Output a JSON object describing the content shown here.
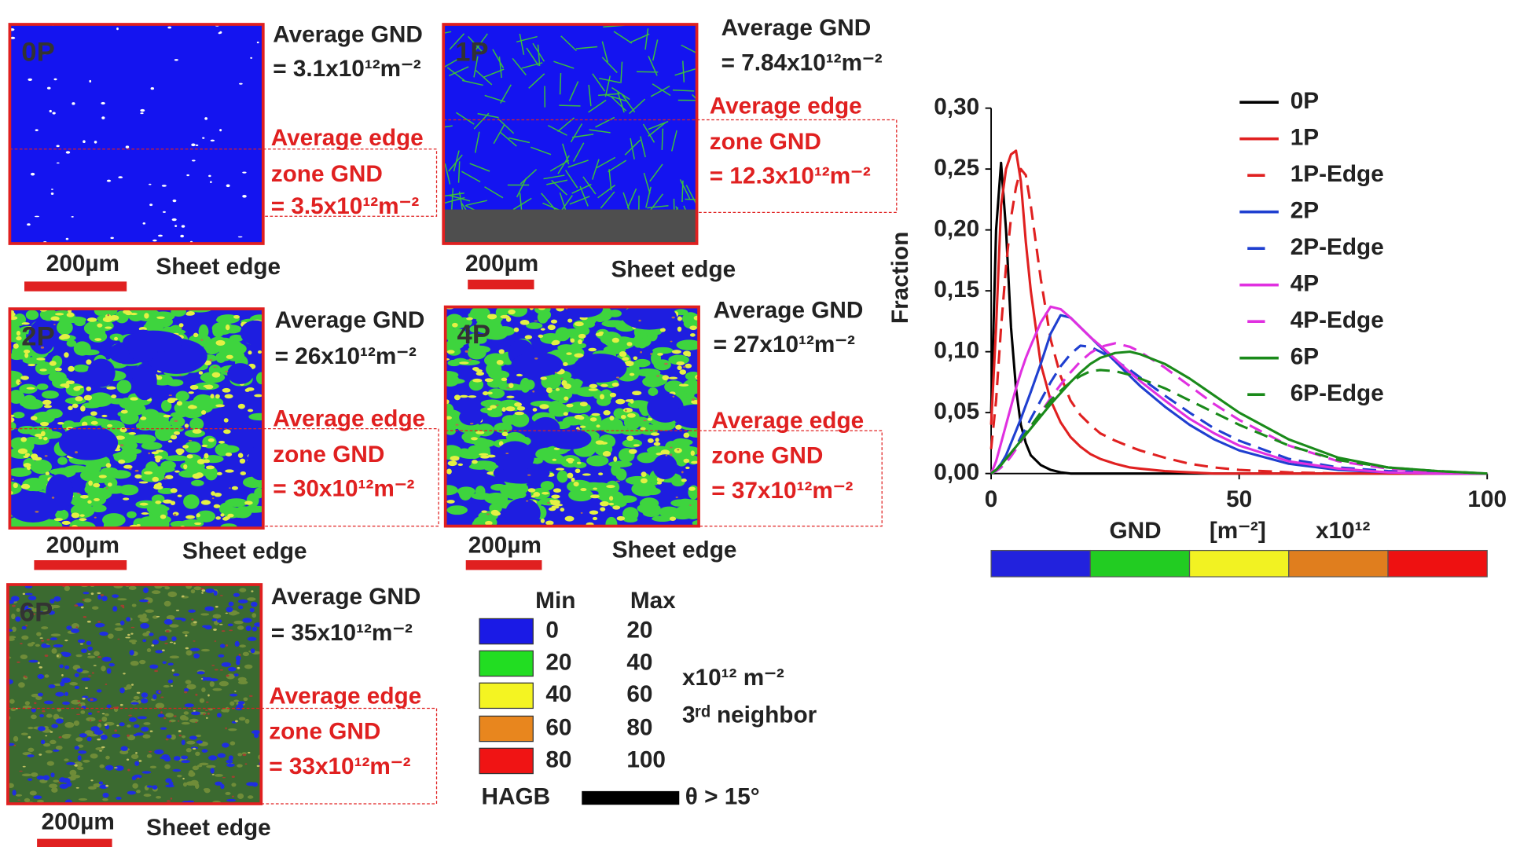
{
  "panels": [
    {
      "label": "0P",
      "avg_title": "Average GND",
      "avg_value": "= 3.1x10¹²m⁻²",
      "edge_lines": [
        "Average edge",
        "zone GND",
        "= 3.5x10¹²m⁻²"
      ],
      "scale": "200µm",
      "edge": "Sheet edge"
    },
    {
      "label": "1P",
      "avg_title": "Average GND",
      "avg_value": "= 7.84x10¹²m⁻²",
      "edge_lines": [
        "Average edge",
        "zone GND",
        "= 12.3x10¹²m⁻²"
      ],
      "scale": "200µm",
      "edge": "Sheet edge"
    },
    {
      "label": "2P",
      "avg_title": "Average GND",
      "avg_value": "= 26x10¹²m⁻²",
      "edge_lines": [
        "Average edge",
        "zone GND",
        "= 30x10¹²m⁻²"
      ],
      "scale": "200µm",
      "edge": "Sheet edge"
    },
    {
      "label": "4P",
      "avg_title": "Average GND",
      "avg_value": "= 27x10¹²m⁻²",
      "edge_lines": [
        "Average edge",
        "zone GND",
        "= 37x10¹²m⁻²"
      ],
      "scale": "200µm",
      "edge": "Sheet edge"
    },
    {
      "label": "6P",
      "avg_title": "Average GND",
      "avg_value": "= 35x10¹²m⁻²",
      "edge_lines": [
        "Average edge",
        "zone GND",
        "= 33x10¹²m⁻²"
      ],
      "scale": "200µm",
      "edge": "Sheet edge"
    }
  ],
  "key": {
    "min_header": "Min",
    "max_header": "Max",
    "rows": [
      {
        "color": "#1a1ae6",
        "min": 0,
        "max": 20
      },
      {
        "color": "#22dd22",
        "min": 20,
        "max": 40
      },
      {
        "color": "#f4f422",
        "min": 40,
        "max": 60
      },
      {
        "color": "#e8861e",
        "min": 60,
        "max": 80
      },
      {
        "color": "#f01414",
        "min": 80,
        "max": 100
      }
    ],
    "unit": "x10¹² m⁻²",
    "neighbor": "3ʳᵈ neighbor",
    "hagb": "HAGB",
    "hagb_rule": "θ > 15°"
  },
  "chart_data": {
    "type": "line",
    "ylabel": "Fraction",
    "xlabel_parts": [
      "GND",
      "[m⁻²]",
      "x10¹²"
    ],
    "x": [
      0,
      1,
      2,
      3,
      4,
      5,
      6,
      7,
      8,
      10,
      12,
      14,
      16,
      18,
      20,
      22,
      25,
      28,
      30,
      35,
      40,
      45,
      50,
      60,
      70,
      80,
      90,
      100
    ],
    "xlim": [
      0,
      100
    ],
    "xticks": [
      0,
      50,
      100
    ],
    "ylim": [
      0,
      0.3
    ],
    "yticks": [
      {
        "value": 0,
        "label": "0,00"
      },
      {
        "value": 0.05,
        "label": "0,05"
      },
      {
        "value": 0.1,
        "label": "0,10"
      },
      {
        "value": 0.15,
        "label": "0,15"
      },
      {
        "value": 0.2,
        "label": "0,20"
      },
      {
        "value": 0.25,
        "label": "0,25"
      },
      {
        "value": 0.3,
        "label": "0,30"
      }
    ],
    "colorbar": [
      "#2222dd",
      "#22cc22",
      "#f2f222",
      "#e07e1e",
      "#ee1111"
    ],
    "series": [
      {
        "name": "0P",
        "color": "#000000",
        "dashed": false,
        "values": [
          0.05,
          0.2,
          0.255,
          0.2,
          0.12,
          0.07,
          0.04,
          0.025,
          0.015,
          0.007,
          0.003,
          0.001,
          0,
          0,
          0,
          0,
          0,
          0,
          0,
          0,
          0,
          0,
          0,
          0,
          0,
          0,
          0,
          0
        ]
      },
      {
        "name": "1P",
        "color": "#e02020",
        "dashed": false,
        "values": [
          0.04,
          0.12,
          0.22,
          0.25,
          0.262,
          0.265,
          0.24,
          0.19,
          0.15,
          0.09,
          0.06,
          0.042,
          0.03,
          0.022,
          0.016,
          0.012,
          0.008,
          0.005,
          0.004,
          0.002,
          0.001,
          0,
          0,
          0,
          0,
          0,
          0,
          0
        ]
      },
      {
        "name": "1P-Edge",
        "color": "#e02020",
        "dashed": true,
        "values": [
          0.02,
          0.06,
          0.12,
          0.17,
          0.21,
          0.235,
          0.25,
          0.245,
          0.22,
          0.16,
          0.11,
          0.08,
          0.06,
          0.048,
          0.04,
          0.033,
          0.027,
          0.022,
          0.019,
          0.013,
          0.008,
          0.005,
          0.003,
          0.001,
          0,
          0,
          0,
          0
        ]
      },
      {
        "name": "2P",
        "color": "#1f3fd0",
        "dashed": false,
        "values": [
          0,
          0.003,
          0.008,
          0.015,
          0.025,
          0.035,
          0.045,
          0.056,
          0.067,
          0.09,
          0.115,
          0.13,
          0.128,
          0.12,
          0.112,
          0.104,
          0.092,
          0.08,
          0.072,
          0.055,
          0.04,
          0.028,
          0.019,
          0.008,
          0.003,
          0.001,
          0,
          0
        ]
      },
      {
        "name": "2P-Edge",
        "color": "#1f3fd0",
        "dashed": true,
        "values": [
          0,
          0.002,
          0.005,
          0.01,
          0.016,
          0.022,
          0.03,
          0.037,
          0.045,
          0.06,
          0.075,
          0.088,
          0.098,
          0.105,
          0.104,
          0.1,
          0.093,
          0.085,
          0.079,
          0.064,
          0.05,
          0.037,
          0.027,
          0.012,
          0.005,
          0.002,
          0.001,
          0
        ]
      },
      {
        "name": "4P",
        "color": "#e030e0",
        "dashed": false,
        "values": [
          0,
          0.01,
          0.025,
          0.04,
          0.055,
          0.07,
          0.083,
          0.095,
          0.105,
          0.124,
          0.137,
          0.135,
          0.128,
          0.12,
          0.112,
          0.105,
          0.094,
          0.083,
          0.076,
          0.06,
          0.045,
          0.033,
          0.023,
          0.01,
          0.004,
          0.001,
          0,
          0
        ]
      },
      {
        "name": "4P-Edge",
        "color": "#e030e0",
        "dashed": true,
        "values": [
          0,
          0.002,
          0.005,
          0.009,
          0.014,
          0.02,
          0.026,
          0.032,
          0.038,
          0.05,
          0.062,
          0.073,
          0.083,
          0.092,
          0.099,
          0.104,
          0.107,
          0.104,
          0.1,
          0.087,
          0.072,
          0.057,
          0.044,
          0.023,
          0.01,
          0.004,
          0.001,
          0
        ]
      },
      {
        "name": "6P",
        "color": "#1a8a1a",
        "dashed": false,
        "values": [
          0,
          0.003,
          0.007,
          0.012,
          0.017,
          0.022,
          0.027,
          0.032,
          0.037,
          0.047,
          0.057,
          0.066,
          0.075,
          0.083,
          0.09,
          0.095,
          0.099,
          0.1,
          0.098,
          0.09,
          0.078,
          0.064,
          0.05,
          0.028,
          0.013,
          0.005,
          0.002,
          0
        ]
      },
      {
        "name": "6P-Edge",
        "color": "#1a8a1a",
        "dashed": true,
        "values": [
          0,
          0.003,
          0.007,
          0.012,
          0.017,
          0.022,
          0.027,
          0.033,
          0.039,
          0.05,
          0.06,
          0.068,
          0.075,
          0.08,
          0.084,
          0.085,
          0.084,
          0.081,
          0.078,
          0.07,
          0.06,
          0.05,
          0.04,
          0.023,
          0.011,
          0.005,
          0.002,
          0
        ]
      }
    ]
  }
}
